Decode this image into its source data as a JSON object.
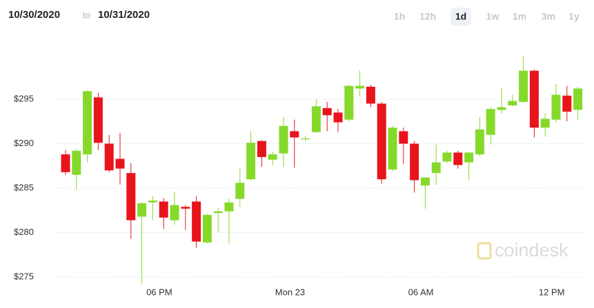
{
  "header": {
    "from": "10/30/2020",
    "separator": "to",
    "to": "10/31/2020"
  },
  "timeframes": [
    {
      "label": "1h"
    },
    {
      "label": "12h"
    },
    {
      "label": "1d",
      "selected": true
    },
    {
      "label": "1w"
    },
    {
      "label": "1m"
    },
    {
      "label": "3m"
    },
    {
      "label": "1y"
    }
  ],
  "watermark": "coindesk",
  "chart_data": {
    "type": "candlestick",
    "categories": [
      null,
      null,
      null,
      null,
      null,
      null,
      null,
      null,
      null,
      "06 PM",
      null,
      null,
      null,
      null,
      null,
      null,
      null,
      null,
      null,
      null,
      null,
      "Mon 23",
      null,
      null,
      null,
      null,
      null,
      null,
      null,
      null,
      null,
      null,
      null,
      "06 AM",
      null,
      null,
      null,
      null,
      null,
      null,
      null,
      null,
      null,
      null,
      null,
      "12 PM",
      null,
      null
    ],
    "open": [
      288.8,
      286.5,
      288.8,
      295.2,
      290.0,
      288.3,
      286.7,
      281.8,
      283.4,
      283.5,
      281.4,
      282.9,
      283.5,
      278.9,
      282.2,
      282.4,
      283.8,
      286.0,
      290.3,
      288.2,
      288.9,
      291.4,
      290.5,
      291.3,
      294.0,
      293.5,
      292.7,
      296.2,
      296.4,
      294.5,
      287.1,
      291.4,
      290.0,
      285.3,
      286.7,
      288.0,
      289.0,
      287.9,
      288.8,
      291.0,
      293.8,
      294.3,
      294.7,
      298.2,
      291.8,
      292.7,
      295.4,
      293.8
    ],
    "high": [
      289.3,
      289.4,
      296.0,
      295.7,
      291.0,
      291.2,
      287.8,
      283.4,
      284.1,
      283.9,
      284.6,
      283.1,
      284.1,
      282.1,
      282.8,
      283.8,
      287.2,
      291.4,
      290.4,
      289.1,
      293.0,
      292.7,
      290.9,
      295.0,
      294.7,
      293.9,
      296.6,
      298.2,
      296.6,
      294.7,
      292.0,
      291.8,
      290.3,
      286.2,
      289.9,
      289.2,
      289.2,
      289.1,
      293.0,
      294.1,
      296.2,
      295.5,
      299.8,
      298.3,
      293.4,
      296.7,
      296.5,
      296.4
    ],
    "low": [
      286.5,
      284.8,
      287.9,
      289.3,
      286.8,
      285.4,
      279.3,
      274.3,
      281.4,
      280.4,
      280.9,
      280.3,
      278.3,
      278.8,
      280.0,
      278.8,
      282.9,
      285.9,
      287.4,
      287.6,
      287.4,
      287.3,
      290.3,
      291.2,
      291.4,
      291.3,
      292.5,
      295.3,
      294.1,
      285.5,
      286.9,
      287.7,
      284.5,
      282.7,
      285.4,
      287.8,
      287.2,
      285.9,
      288.6,
      289.9,
      293.4,
      294.2,
      294.6,
      290.7,
      290.8,
      292.4,
      292.5,
      292.7
    ],
    "close": [
      286.8,
      289.2,
      295.9,
      290.1,
      287.0,
      287.2,
      281.4,
      283.3,
      283.6,
      281.7,
      283.1,
      282.7,
      279.0,
      282.0,
      282.4,
      283.4,
      285.6,
      290.1,
      288.5,
      288.8,
      292.0,
      290.7,
      290.6,
      294.2,
      293.2,
      292.4,
      296.5,
      296.5,
      294.5,
      286.0,
      291.8,
      290.0,
      285.9,
      286.2,
      287.9,
      289.0,
      287.6,
      289.0,
      291.6,
      293.9,
      294.1,
      294.8,
      298.2,
      291.8,
      292.8,
      295.5,
      293.6,
      296.2
    ],
    "ylim": [
      274.4,
      301.5
    ],
    "yticks": [
      {
        "value": 275,
        "label": "$275"
      },
      {
        "value": 280,
        "label": "$280"
      },
      {
        "value": 285,
        "label": "$285"
      },
      {
        "value": 290,
        "label": "$290"
      },
      {
        "value": 295,
        "label": "$295"
      }
    ],
    "grid": true,
    "up_color": "#86d92a",
    "down_color": "#e8141c"
  }
}
